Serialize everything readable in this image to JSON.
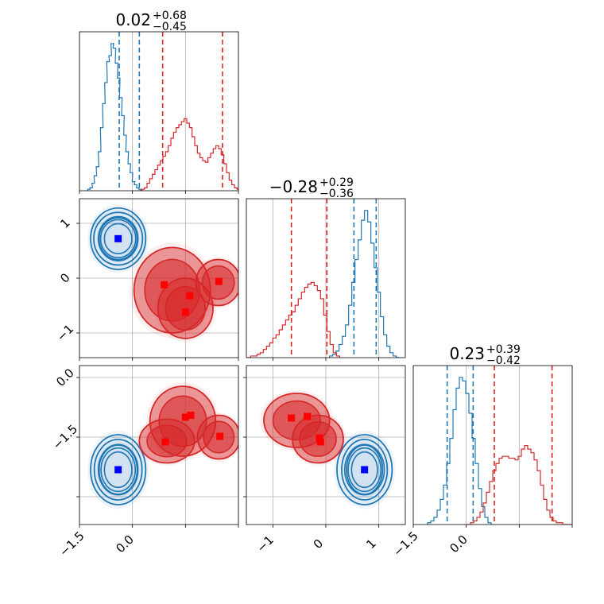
{
  "chart_data": {
    "type": "corner",
    "grid": true,
    "series": [
      {
        "color": "#1f77b4"
      },
      {
        "color": "#d62728"
      }
    ],
    "panels": [
      {
        "type": "histogram",
        "row": 0,
        "col": 0,
        "title": {
          "median": "0.02",
          "plus": "+0.68",
          "minus": "−0.45"
        },
        "xlim": [
          -2.0,
          1.0
        ],
        "series": [
          {
            "index": 0,
            "step": 0.05,
            "x": [
              -1.82,
              -1.78,
              -1.74,
              -1.7,
              -1.66,
              -1.62,
              -1.58,
              -1.54,
              -1.5,
              -1.46,
              -1.42,
              -1.38,
              -1.34,
              -1.3,
              -1.26,
              -1.22,
              -1.18,
              -1.14,
              -1.1,
              -1.06,
              -1.02,
              -0.98,
              -0.94,
              -0.9,
              -0.86,
              -0.82
            ],
            "y": [
              0.01,
              0.02,
              0.05,
              0.1,
              0.16,
              0.26,
              0.42,
              0.58,
              0.72,
              0.86,
              0.9,
              0.98,
              0.95,
              0.85,
              0.75,
              0.62,
              0.5,
              0.37,
              0.26,
              0.18,
              0.12,
              0.06,
              0.04,
              0.02,
              0.01,
              0.0
            ],
            "quantiles": [
              -1.25,
              -0.87
            ]
          },
          {
            "index": 1,
            "step": 0.05,
            "x": [
              -0.85,
              -0.8,
              -0.75,
              -0.7,
              -0.65,
              -0.6,
              -0.55,
              -0.5,
              -0.45,
              -0.4,
              -0.35,
              -0.3,
              -0.25,
              -0.2,
              -0.15,
              -0.1,
              -0.05,
              0.0,
              0.05,
              0.1,
              0.15,
              0.2,
              0.25,
              0.3,
              0.35,
              0.4,
              0.45,
              0.5,
              0.55,
              0.6,
              0.65,
              0.7,
              0.75,
              0.8,
              0.85,
              0.9,
              0.95,
              1.0
            ],
            "y": [
              0.0,
              0.01,
              0.02,
              0.05,
              0.08,
              0.11,
              0.14,
              0.17,
              0.2,
              0.23,
              0.26,
              0.3,
              0.35,
              0.39,
              0.42,
              0.44,
              0.46,
              0.48,
              0.45,
              0.42,
              0.36,
              0.3,
              0.25,
              0.22,
              0.2,
              0.19,
              0.22,
              0.25,
              0.28,
              0.3,
              0.28,
              0.24,
              0.18,
              0.12,
              0.07,
              0.04,
              0.02,
              0.01
            ],
            "quantiles": [
              -0.43,
              0.7
            ]
          }
        ]
      },
      {
        "type": "scatter2d",
        "row": 1,
        "col": 0,
        "xlim": [
          -2.0,
          1.0
        ],
        "ylim": [
          -1.45,
          1.45
        ],
        "series": [
          {
            "index": 0,
            "markers": [
              [
                -1.27,
                0.72
              ]
            ],
            "contours": [
              {
                "cx": -1.27,
                "cy": 0.72,
                "rx": 0.36,
                "ry": 0.38,
                "fill": false
              },
              {
                "cx": -1.27,
                "cy": 0.72,
                "rx": 0.46,
                "ry": 0.48,
                "fill": false
              },
              {
                "cx": -1.27,
                "cy": 0.72,
                "rx": 0.52,
                "ry": 0.56,
                "fill": false
              }
            ]
          },
          {
            "index": 1,
            "markers": [
              [
                -0.4,
                -0.12
              ],
              [
                0.08,
                -0.32
              ],
              [
                0.0,
                -0.62
              ],
              [
                0.63,
                -0.06
              ]
            ],
            "contours": [
              {
                "cx": -0.25,
                "cy": -0.22,
                "rx": 0.72,
                "ry": 0.78,
                "fill": true
              },
              {
                "cx": 0.62,
                "cy": -0.08,
                "rx": 0.42,
                "ry": 0.42,
                "fill": true
              },
              {
                "cx": 0.0,
                "cy": -0.55,
                "rx": 0.52,
                "ry": 0.55,
                "fill": true
              }
            ]
          }
        ],
        "yticks": [
          "1",
          "0",
          "−1"
        ]
      },
      {
        "type": "histogram",
        "row": 1,
        "col": 1,
        "title": {
          "median": "−0.28",
          "plus": "+0.29",
          "minus": "−0.36"
        },
        "xlim": [
          -1.5,
          1.5
        ],
        "series": [
          {
            "index": 0,
            "step": 0.06,
            "x": [
              0.1,
              0.16,
              0.22,
              0.28,
              0.34,
              0.4,
              0.46,
              0.52,
              0.58,
              0.64,
              0.7,
              0.76,
              0.82,
              0.88,
              0.94,
              1.0,
              1.06,
              1.12,
              1.18,
              1.24,
              1.3,
              1.36
            ],
            "y": [
              0.01,
              0.02,
              0.04,
              0.08,
              0.13,
              0.2,
              0.32,
              0.46,
              0.6,
              0.72,
              0.84,
              0.9,
              0.83,
              0.7,
              0.55,
              0.4,
              0.25,
              0.14,
              0.07,
              0.03,
              0.01,
              0.0
            ],
            "quantiles": [
              0.53,
              0.95
            ]
          },
          {
            "index": 1,
            "step": 0.06,
            "x": [
              -1.45,
              -1.39,
              -1.33,
              -1.27,
              -1.21,
              -1.15,
              -1.09,
              -1.03,
              -0.97,
              -0.91,
              -0.85,
              -0.79,
              -0.73,
              -0.67,
              -0.61,
              -0.55,
              -0.49,
              -0.43,
              -0.37,
              -0.31,
              -0.25,
              -0.19,
              -0.13,
              -0.07,
              -0.01,
              0.05,
              0.11,
              0.17,
              0.23
            ],
            "y": [
              0.0,
              0.01,
              0.01,
              0.02,
              0.03,
              0.05,
              0.07,
              0.09,
              0.12,
              0.14,
              0.17,
              0.2,
              0.23,
              0.26,
              0.28,
              0.32,
              0.36,
              0.4,
              0.43,
              0.45,
              0.46,
              0.44,
              0.41,
              0.36,
              0.26,
              0.16,
              0.08,
              0.03,
              0.01
            ],
            "quantiles": [
              -0.65,
              0.02
            ]
          }
        ]
      },
      {
        "type": "scatter2d",
        "row": 2,
        "col": 0,
        "xlim": [
          -2.0,
          1.0
        ],
        "ylim": [
          -2.2,
          1.8
        ],
        "series": [
          {
            "index": 0,
            "markers": [
              [
                -1.27,
                -0.82
              ]
            ],
            "contours": [
              {
                "cx": -1.27,
                "cy": -0.82,
                "rx": 0.36,
                "ry": 0.62,
                "fill": false
              },
              {
                "cx": -1.27,
                "cy": -0.82,
                "rx": 0.45,
                "ry": 0.76,
                "fill": false
              },
              {
                "cx": -1.27,
                "cy": -0.82,
                "rx": 0.52,
                "ry": 0.88,
                "fill": false
              }
            ]
          },
          {
            "index": 1,
            "markers": [
              [
                -0.38,
                -0.12
              ],
              [
                0.0,
                0.5
              ],
              [
                0.1,
                0.55
              ],
              [
                0.65,
                0.02
              ]
            ],
            "contours": [
              {
                "cx": -0.05,
                "cy": 0.4,
                "rx": 0.62,
                "ry": 0.88,
                "fill": true
              },
              {
                "cx": -0.35,
                "cy": -0.1,
                "rx": 0.52,
                "ry": 0.55,
                "fill": true
              },
              {
                "cx": 0.63,
                "cy": 0.0,
                "rx": 0.4,
                "ry": 0.55,
                "fill": true
              }
            ]
          }
        ],
        "yticks": [
          "0.0",
          "−1.5"
        ],
        "xticks": [
          "−1.5",
          "0.0"
        ]
      },
      {
        "type": "scatter2d",
        "row": 2,
        "col": 1,
        "xlim": [
          -1.5,
          1.5
        ],
        "ylim": [
          -2.2,
          1.8
        ],
        "series": [
          {
            "index": 0,
            "markers": [
              [
                0.73,
                -0.82
              ]
            ],
            "contours": [
              {
                "cx": 0.73,
                "cy": -0.82,
                "rx": 0.34,
                "ry": 0.62,
                "fill": false
              },
              {
                "cx": 0.73,
                "cy": -0.82,
                "rx": 0.43,
                "ry": 0.76,
                "fill": false
              },
              {
                "cx": 0.73,
                "cy": -0.82,
                "rx": 0.52,
                "ry": 0.88,
                "fill": false
              }
            ]
          },
          {
            "index": 1,
            "markers": [
              [
                -0.65,
                0.48
              ],
              [
                -0.35,
                0.52
              ],
              [
                -0.12,
                -0.02
              ],
              [
                -0.1,
                -0.12
              ]
            ],
            "contours": [
              {
                "cx": -0.55,
                "cy": 0.42,
                "rx": 0.62,
                "ry": 0.68,
                "fill": true
              },
              {
                "cx": -0.15,
                "cy": -0.05,
                "rx": 0.48,
                "ry": 0.6,
                "fill": true
              }
            ]
          }
        ],
        "xticks": [
          "−1",
          "0",
          "1"
        ]
      },
      {
        "type": "histogram",
        "row": 2,
        "col": 2,
        "title": {
          "median": "0.23",
          "plus": "+0.39",
          "minus": "−0.42"
        },
        "xlim": [
          -2.0,
          1.0
        ],
        "series": [
          {
            "index": 0,
            "step": 0.06,
            "x": [
              -1.7,
              -1.64,
              -1.58,
              -1.52,
              -1.46,
              -1.4,
              -1.34,
              -1.28,
              -1.22,
              -1.16,
              -1.1,
              -1.04,
              -0.98,
              -0.92,
              -0.86,
              -0.8,
              -0.74,
              -0.68,
              -0.62,
              -0.56
            ],
            "y": [
              0.01,
              0.02,
              0.04,
              0.08,
              0.14,
              0.22,
              0.34,
              0.48,
              0.64,
              0.76,
              0.82,
              0.8,
              0.73,
              0.62,
              0.48,
              0.34,
              0.2,
              0.1,
              0.04,
              0.01
            ],
            "quantiles": [
              -1.36,
              -0.87
            ]
          },
          {
            "index": 1,
            "step": 0.06,
            "x": [
              -0.95,
              -0.89,
              -0.83,
              -0.77,
              -0.71,
              -0.65,
              -0.59,
              -0.53,
              -0.47,
              -0.41,
              -0.35,
              -0.29,
              -0.23,
              -0.17,
              -0.11,
              -0.05,
              0.01,
              0.07,
              0.13,
              0.19,
              0.25,
              0.31,
              0.37,
              0.43,
              0.49,
              0.55,
              0.61,
              0.67,
              0.73,
              0.79,
              0.85,
              0.91,
              0.97
            ],
            "y": [
              0.0,
              0.01,
              0.02,
              0.04,
              0.07,
              0.12,
              0.18,
              0.24,
              0.3,
              0.34,
              0.37,
              0.38,
              0.38,
              0.37,
              0.37,
              0.36,
              0.38,
              0.42,
              0.44,
              0.42,
              0.4,
              0.36,
              0.3,
              0.22,
              0.14,
              0.08,
              0.04,
              0.02,
              0.01,
              0.01,
              0.0,
              0.0,
              0.0
            ],
            "quantiles": [
              -0.47,
              0.62
            ]
          }
        ]
      }
    ]
  }
}
